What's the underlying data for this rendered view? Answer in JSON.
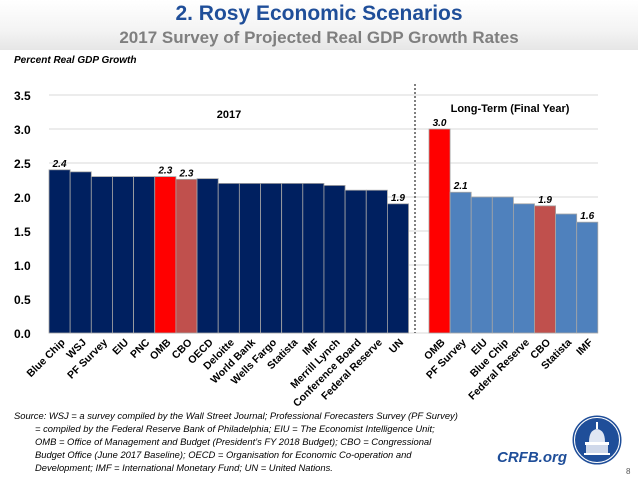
{
  "header": {
    "title": "2. Rosy Economic Scenarios",
    "subtitle": "2017 Survey of Projected Real GDP Growth Rates"
  },
  "chart_data": {
    "type": "bar",
    "title": "2017 Survey of Projected Real GDP Growth Rates",
    "ylabel": "Percent Real GDP Growth",
    "xlabel": "",
    "ylim": [
      0,
      3.5
    ],
    "yticks": [
      "0.0",
      "0.5",
      "1.0",
      "1.5",
      "2.0",
      "2.5",
      "3.0",
      "3.5"
    ],
    "grid": true,
    "groups": [
      {
        "name": "2017",
        "categories": [
          "Blue Chip",
          "WSJ",
          "PF Survey",
          "EIU",
          "PNC",
          "OMB",
          "CBO",
          "OECD",
          "Deloitte",
          "World Bank",
          "Wells Fargo",
          "Statista",
          "IMF",
          "Merrill Lynch",
          "Conference Board",
          "Federal Reserve",
          "UN"
        ],
        "values": [
          2.4,
          2.37,
          2.3,
          2.3,
          2.3,
          2.3,
          2.26,
          2.27,
          2.2,
          2.2,
          2.2,
          2.2,
          2.2,
          2.17,
          2.1,
          2.1,
          1.9
        ],
        "highlight": {
          "OMB": "#ff0000",
          "CBO": "#c0504d"
        },
        "default_color": "#002060",
        "data_labels": {
          "Blue Chip": "2.4",
          "OMB": "2.3",
          "CBO": "2.3",
          "UN": "1.9"
        }
      },
      {
        "name": "Long-Term (Final Year)",
        "categories": [
          "OMB",
          "PF Survey",
          "EIU",
          "Blue Chip",
          "Federal Reserve",
          "CBO",
          "Statista",
          "IMF"
        ],
        "values": [
          3.0,
          2.07,
          2.0,
          2.0,
          1.9,
          1.87,
          1.75,
          1.63
        ],
        "highlight": {
          "OMB": "#ff0000",
          "CBO": "#c0504d"
        },
        "default_color": "#4f81bd",
        "data_labels": {
          "OMB": "3.0",
          "PF Survey": "2.1",
          "CBO": "1.9",
          "IMF": "1.6"
        }
      }
    ]
  },
  "source": {
    "line1": "Source: WSJ = a survey compiled by the Wall Street Journal; Professional Forecasters Survey (PF Survey)",
    "line2": "= compiled by the Federal Reserve Bank of Philadelphia; EIU = The Economist Intelligence Unit;",
    "line3": "OMB = Office of Management and Budget (President’s FY 2018 Budget); CBO = Congressional",
    "line4": "Budget Office (June 2017 Baseline); OECD = Organisation for Economic Co-operation and",
    "line5": "Development; IMF = International Monetary Fund; UN = United Nations."
  },
  "brand": {
    "text": "CRFB.org",
    "logo_icon": "capitol-dome-icon"
  },
  "page_number": "8"
}
